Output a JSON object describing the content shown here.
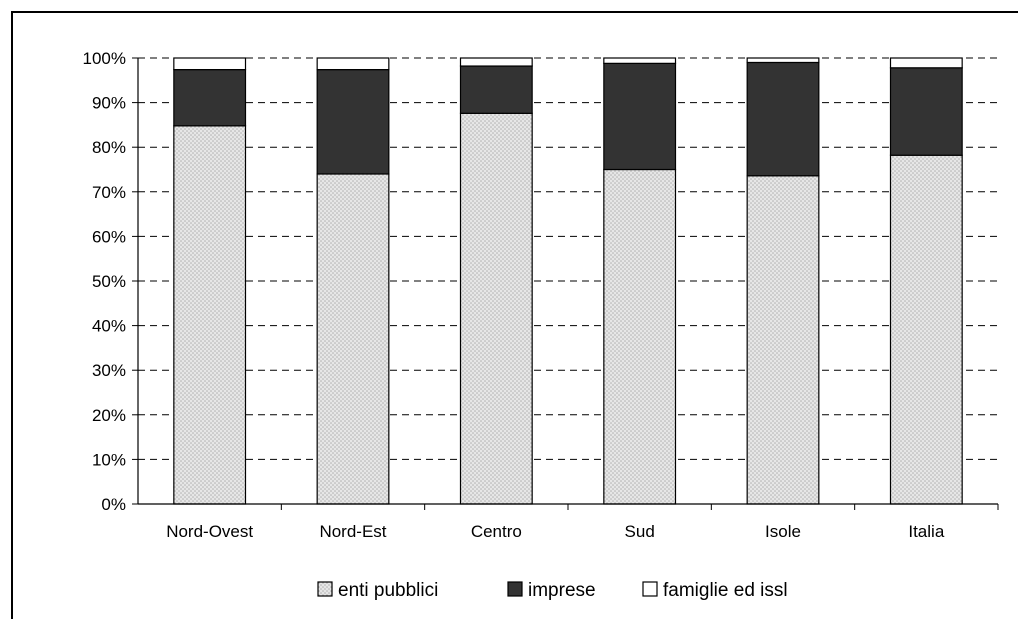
{
  "chart_data": {
    "type": "bar",
    "stacked": true,
    "percent": true,
    "categories": [
      "Nord-Ovest",
      "Nord-Est",
      "Centro",
      "Sud",
      "Isole",
      "Italia"
    ],
    "series": [
      {
        "name": "enti pubblici",
        "values": [
          84.8,
          74.0,
          87.6,
          75.0,
          73.6,
          78.2
        ],
        "color": "#d8d8d8",
        "pattern": "dotted"
      },
      {
        "name": "imprese",
        "values": [
          12.6,
          23.4,
          10.6,
          23.8,
          25.4,
          19.6
        ],
        "color": "#333333"
      },
      {
        "name": "famiglie ed issl",
        "values": [
          2.6,
          2.6,
          1.8,
          1.2,
          1.0,
          2.2
        ],
        "color": "#ffffff"
      }
    ],
    "y_ticks": [
      "0%",
      "10%",
      "20%",
      "30%",
      "40%",
      "50%",
      "60%",
      "70%",
      "80%",
      "90%",
      "100%"
    ],
    "ylim": [
      0,
      100
    ],
    "grid": "dashed-horizontal",
    "legend": "bottom"
  }
}
